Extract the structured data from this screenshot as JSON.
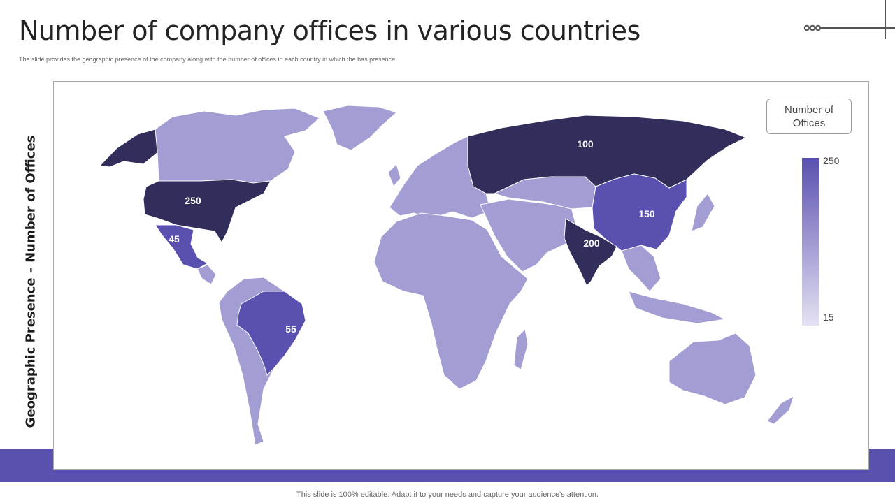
{
  "slide": {
    "title": "Number of company offices in various countries",
    "subtitle": "The slide provides the geographic presence of the company along with the number of offices in each country in which the has presence.",
    "vertical_label": "Geographic Presence – Number of Offices",
    "footer": "This slide is 100% editable. Adapt it to your needs and capture your audience's attention."
  },
  "legend": {
    "title": "Number of Offices",
    "max_label": "250",
    "min_label": "15",
    "color_high": "#5a50b0",
    "color_low": "#e4e2f3"
  },
  "colors": {
    "band": "#5a50b0",
    "base_country": "#a29dd2",
    "darkest": "#322e5c",
    "mid": "#5a50b0",
    "deco_line": "#555555"
  },
  "countries": [
    {
      "name": "United States",
      "offices": 250,
      "label": "250",
      "color": "#322e5c"
    },
    {
      "name": "Russia",
      "offices": 100,
      "label": "100",
      "color": "#322e5c"
    },
    {
      "name": "India",
      "offices": 200,
      "label": "200",
      "color": "#322e5c"
    },
    {
      "name": "China",
      "offices": 150,
      "label": "150",
      "color": "#5a50b0"
    },
    {
      "name": "Brazil",
      "offices": 55,
      "label": "55",
      "color": "#5a50b0"
    },
    {
      "name": "Mexico",
      "offices": 45,
      "label": "45",
      "color": "#5a50b0"
    }
  ]
}
